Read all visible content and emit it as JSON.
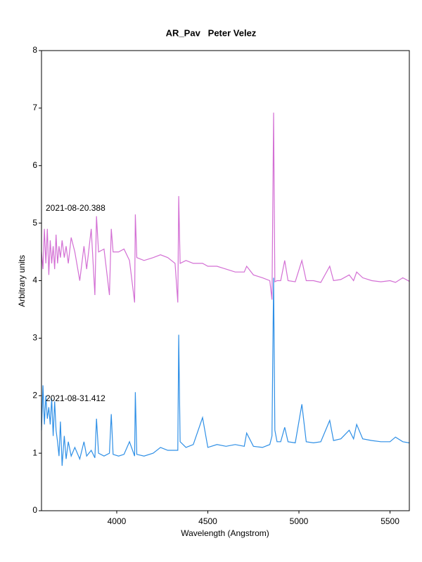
{
  "chart_data": {
    "type": "line",
    "title": "AR_Pav   Peter Velez",
    "x_label": "Wavelength (Angstrom)",
    "y_label": "Arbitrary units",
    "xlim": [
      3587,
      5606
    ],
    "ylim": [
      0,
      8
    ],
    "xticks": [
      4000,
      4500,
      5000,
      5500
    ],
    "yticks": [
      0,
      1,
      2,
      3,
      4,
      5,
      6,
      7,
      8
    ],
    "x": [
      3587,
      3595,
      3603,
      3611,
      3619,
      3627,
      3635,
      3643,
      3651,
      3659,
      3667,
      3675,
      3683,
      3691,
      3700,
      3712,
      3722,
      3734,
      3750,
      3770,
      3797,
      3820,
      3835,
      3860,
      3880,
      3889,
      3900,
      3930,
      3960,
      3970,
      3980,
      4010,
      4040,
      4070,
      4098,
      4102,
      4110,
      4150,
      4200,
      4240,
      4280,
      4320,
      4335,
      4340,
      4348,
      4380,
      4420,
      4471,
      4500,
      4550,
      4600,
      4650,
      4700,
      4713,
      4750,
      4800,
      4840,
      4852,
      4861,
      4868,
      4880,
      4900,
      4922,
      4940,
      4980,
      5016,
      5040,
      5080,
      5120,
      5169,
      5190,
      5230,
      5276,
      5300,
      5317,
      5350,
      5400,
      5450,
      5500,
      5530,
      5570,
      5605
    ],
    "series": [
      {
        "name": "2021-08-20.388",
        "color": "#d36fd4",
        "values": [
          4.5,
          4.2,
          4.9,
          4.3,
          4.9,
          4.1,
          4.7,
          4.3,
          4.6,
          4.2,
          4.8,
          4.3,
          4.6,
          4.4,
          4.7,
          4.4,
          4.6,
          4.3,
          4.75,
          4.5,
          4.0,
          4.6,
          4.2,
          4.9,
          3.75,
          5.12,
          4.5,
          4.55,
          3.75,
          4.9,
          4.5,
          4.5,
          4.55,
          4.35,
          3.62,
          5.15,
          4.4,
          4.35,
          4.4,
          4.45,
          4.4,
          4.3,
          3.62,
          5.47,
          4.3,
          4.35,
          4.3,
          4.3,
          4.25,
          4.25,
          4.2,
          4.15,
          4.15,
          4.25,
          4.1,
          4.05,
          4.0,
          3.67,
          6.92,
          3.98,
          4.0,
          4.0,
          4.35,
          4.0,
          3.98,
          4.35,
          4.0,
          4.0,
          3.97,
          4.25,
          4.0,
          4.02,
          4.1,
          4.0,
          4.15,
          4.05,
          4.0,
          3.98,
          4.0,
          3.97,
          4.05,
          3.99
        ]
      },
      {
        "name": "2021-08-31.412",
        "color": "#2e8fe6",
        "values": [
          1.4,
          2.18,
          1.5,
          2.0,
          1.6,
          1.8,
          1.5,
          1.95,
          1.3,
          1.9,
          1.4,
          1.2,
          0.95,
          1.55,
          0.78,
          1.3,
          0.9,
          1.2,
          0.95,
          1.1,
          0.9,
          1.2,
          0.95,
          1.05,
          0.92,
          1.6,
          1.0,
          0.95,
          1.0,
          1.68,
          0.98,
          0.95,
          0.98,
          1.2,
          0.95,
          2.06,
          0.98,
          0.95,
          1.0,
          1.1,
          1.05,
          1.05,
          1.05,
          3.06,
          1.2,
          1.1,
          1.15,
          1.62,
          1.1,
          1.15,
          1.12,
          1.15,
          1.12,
          1.35,
          1.12,
          1.1,
          1.15,
          1.3,
          4.05,
          1.4,
          1.2,
          1.2,
          1.45,
          1.2,
          1.18,
          1.85,
          1.2,
          1.18,
          1.2,
          1.57,
          1.22,
          1.25,
          1.4,
          1.25,
          1.5,
          1.25,
          1.22,
          1.2,
          1.2,
          1.28,
          1.2,
          1.18
        ]
      }
    ]
  }
}
